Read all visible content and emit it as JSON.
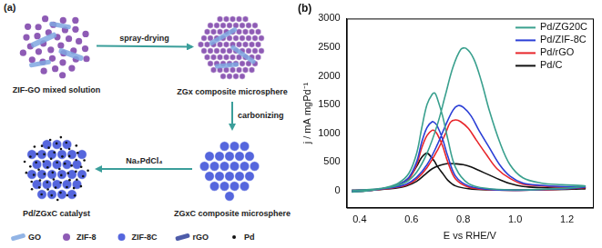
{
  "diagram": {
    "panel_label": "(a)",
    "nodes": [
      {
        "label": "ZIF-GO mixed solution"
      },
      {
        "label": "ZGx composite microsphere"
      },
      {
        "label": "ZGxC composite microsphere"
      },
      {
        "label": "Pd/ZGxC catalyst"
      }
    ],
    "edges": [
      {
        "from": 0,
        "to": 1,
        "label": "spray-drying"
      },
      {
        "from": 1,
        "to": 2,
        "label": "carbonizing"
      },
      {
        "from": 2,
        "to": 3,
        "label": "Na₂PdCl₄"
      }
    ],
    "legend": [
      {
        "label": "GO"
      },
      {
        "label": "ZIF-8"
      },
      {
        "label": "ZIF-8C"
      },
      {
        "label": "rGO"
      },
      {
        "label": "Pd"
      }
    ]
  },
  "chart_data": {
    "type": "line",
    "title": "(b)",
    "xlabel": "E vs RHE/V",
    "ylabel": "j / mA mgPd⁻¹",
    "xlim": [
      0.35,
      1.3
    ],
    "xticks": [
      0.4,
      0.6,
      0.8,
      {
        "value": 1,
        "label": "1.0"
      },
      1.2
    ],
    "ylim": [
      -300,
      3000
    ],
    "yticks": [
      0,
      500,
      1000,
      1500,
      2000,
      2500,
      3000
    ],
    "grid": false,
    "legend": "upper right",
    "series": [
      {
        "name": "Pd/ZG20C",
        "color": "#3aa08e",
        "x": [
          0.37,
          0.45,
          0.52,
          0.58,
          0.62,
          0.66,
          0.7,
          0.73,
          0.76,
          0.79,
          0.81,
          0.84,
          0.87,
          0.9,
          0.94,
          0.98,
          1.03,
          1.1,
          1.18,
          1.27,
          1.2,
          1.1,
          1.0,
          0.9,
          0.82,
          0.77,
          0.74,
          0.72,
          0.7,
          0.69,
          0.68,
          0.66,
          0.64,
          0.62,
          0.59,
          0.55,
          0.5,
          0.44,
          0.37
        ],
        "values": [
          0,
          20,
          60,
          150,
          320,
          650,
          1150,
          1650,
          2150,
          2460,
          2480,
          2300,
          1900,
          1400,
          850,
          450,
          220,
          130,
          100,
          80,
          40,
          20,
          10,
          30,
          120,
          400,
          900,
          1300,
          1600,
          1700,
          1680,
          1500,
          1100,
          650,
          300,
          130,
          50,
          0,
          -30
        ]
      },
      {
        "name": "Pd/ZIF-8C",
        "color": "#2b3fd6",
        "x": [
          0.37,
          0.45,
          0.52,
          0.58,
          0.62,
          0.66,
          0.7,
          0.73,
          0.76,
          0.78,
          0.8,
          0.83,
          0.86,
          0.9,
          0.94,
          0.98,
          1.03,
          1.1,
          1.18,
          1.27,
          1.2,
          1.1,
          1.0,
          0.9,
          0.82,
          0.77,
          0.74,
          0.72,
          0.7,
          0.69,
          0.68,
          0.66,
          0.64,
          0.62,
          0.59,
          0.55,
          0.5,
          0.44,
          0.37
        ],
        "values": [
          0,
          15,
          45,
          110,
          230,
          450,
          800,
          1120,
          1400,
          1480,
          1450,
          1300,
          1050,
          750,
          450,
          250,
          130,
          90,
          70,
          60,
          30,
          15,
          5,
          20,
          80,
          250,
          600,
          900,
          1120,
          1180,
          1200,
          1100,
          850,
          500,
          230,
          100,
          40,
          0,
          -25
        ]
      },
      {
        "name": "Pd/rGO",
        "color": "#e8262b",
        "x": [
          0.37,
          0.45,
          0.52,
          0.58,
          0.62,
          0.66,
          0.7,
          0.73,
          0.75,
          0.77,
          0.79,
          0.82,
          0.85,
          0.89,
          0.93,
          0.98,
          1.03,
          1.1,
          1.18,
          1.27,
          1.2,
          1.1,
          1.0,
          0.9,
          0.82,
          0.77,
          0.74,
          0.72,
          0.7,
          0.69,
          0.68,
          0.66,
          0.64,
          0.62,
          0.59,
          0.55,
          0.5,
          0.44,
          0.37
        ],
        "values": [
          0,
          15,
          40,
          95,
          200,
          400,
          700,
          980,
          1190,
          1230,
          1200,
          1080,
          880,
          620,
          380,
          210,
          110,
          80,
          60,
          50,
          30,
          10,
          5,
          15,
          60,
          200,
          500,
          780,
          980,
          1040,
          1050,
          960,
          750,
          450,
          200,
          90,
          35,
          0,
          -20
        ]
      },
      {
        "name": "Pd/C",
        "color": "#111111",
        "x": [
          0.37,
          0.45,
          0.52,
          0.58,
          0.62,
          0.65,
          0.68,
          0.71,
          0.74,
          0.77,
          0.8,
          0.83,
          0.86,
          0.9,
          0.94,
          0.98,
          1.03,
          1.1,
          1.18,
          1.27,
          1.2,
          1.1,
          1.0,
          0.9,
          0.82,
          0.77,
          0.74,
          0.72,
          0.7,
          0.69,
          0.68,
          0.66,
          0.64,
          0.62,
          0.59,
          0.55,
          0.5,
          0.44,
          0.37
        ],
        "values": [
          0,
          10,
          30,
          80,
          160,
          270,
          380,
          440,
          470,
          465,
          450,
          410,
          350,
          270,
          190,
          120,
          70,
          50,
          40,
          30,
          20,
          10,
          5,
          10,
          30,
          80,
          180,
          300,
          420,
          500,
          560,
          650,
          580,
          420,
          220,
          100,
          40,
          0,
          -20
        ]
      }
    ]
  }
}
